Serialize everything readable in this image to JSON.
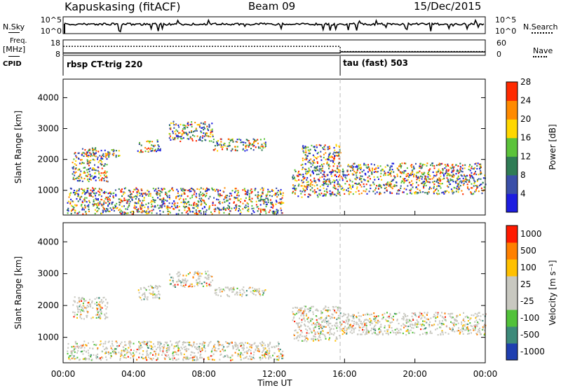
{
  "header": {
    "station": "Kapuskasing (fitACF)",
    "beam": "Beam 09",
    "date": "15/Dec/2015"
  },
  "left_labels": {
    "nsky": "N.Sky",
    "freq": "Freq.",
    "freq_unit": "[MHz]",
    "cpid": "CPID"
  },
  "right_labels": {
    "nsearch": "N.Search",
    "nave": "Nave"
  },
  "cpid_segments": [
    "rbsp CT-trig 220",
    "tau (fast) 503"
  ],
  "chart_data": [
    {
      "type": "line",
      "name": "noise",
      "left_ticks": [
        "10^5",
        "10^0"
      ],
      "right_ticks": [
        "10^5",
        "10^0"
      ],
      "series": [
        {
          "name": "N.Sky",
          "style": "solid"
        },
        {
          "name": "N.Search",
          "style": "dotted"
        }
      ]
    },
    {
      "type": "line",
      "name": "freq-nave",
      "left_ticks": [
        "18",
        "8"
      ],
      "right_ticks": [
        "60",
        "0"
      ],
      "freq_ylim": [
        8,
        18
      ],
      "nave_ylim": [
        0,
        60
      ],
      "series": [
        {
          "name": "Freq",
          "style": "solid",
          "x": [
            0,
            15.75,
            15.75,
            24
          ],
          "values": [
            9.5,
            9.5,
            10.2,
            10.2
          ]
        },
        {
          "name": "Nave",
          "style": "dotted",
          "x": [
            0,
            15.75,
            15.75,
            24
          ],
          "values": [
            35,
            35,
            15,
            15
          ]
        }
      ]
    },
    {
      "type": "heatmap",
      "name": "power",
      "ylabel": "Slant Range [km]",
      "ylim": [
        200,
        4600
      ],
      "yticks": [
        1000,
        2000,
        3000,
        4000
      ],
      "colorbar_label": "Power [dB]",
      "colorbar_ticks": [
        "4",
        "8",
        "12",
        "16",
        "20",
        "24",
        "28"
      ],
      "colors": [
        "#1d1de0",
        "#3a4fa8",
        "#2f7c55",
        "#5bc33a",
        "#ffd700",
        "#ff8a00",
        "#ff2a00"
      ],
      "bands": [
        {
          "x": [
            0.5,
            2.5
          ],
          "y": [
            1300,
            2250
          ]
        },
        {
          "x": [
            1.0,
            3.2
          ],
          "y": [
            2100,
            2400
          ]
        },
        {
          "x": [
            4.2,
            5.5
          ],
          "y": [
            2250,
            2650
          ]
        },
        {
          "x": [
            6.0,
            8.5
          ],
          "y": [
            2600,
            3250
          ]
        },
        {
          "x": [
            8.5,
            11.5
          ],
          "y": [
            2300,
            2700
          ]
        },
        {
          "x": [
            13.5,
            15.75
          ],
          "y": [
            1600,
            2500
          ]
        },
        {
          "x": [
            13.0,
            15.75
          ],
          "y": [
            800,
            1700
          ]
        },
        {
          "x": [
            15.75,
            24
          ],
          "y": [
            900,
            1900
          ]
        },
        {
          "x": [
            0.2,
            12.5
          ],
          "y": [
            250,
            1100
          ]
        }
      ]
    },
    {
      "type": "heatmap",
      "name": "velocity",
      "ylabel": "Slant Range [km]",
      "ylim": [
        200,
        4600
      ],
      "yticks": [
        1000,
        2000,
        3000,
        4000
      ],
      "colorbar_label": "Velocity [m s⁻¹]",
      "colorbar_ticks": [
        "1000",
        "500",
        "100",
        "25",
        "-25",
        "-100",
        "-500",
        "-1000"
      ],
      "colors": [
        "#1f3fb0",
        "#3d8a7a",
        "#52c23a",
        "#c8c8c0",
        "#c8c8c0",
        "#ffc000",
        "#ff8000",
        "#ff1a00"
      ],
      "bands": [
        {
          "x": [
            0.5,
            2.5
          ],
          "y": [
            1600,
            2300
          ]
        },
        {
          "x": [
            4.2,
            5.5
          ],
          "y": [
            2200,
            2650
          ]
        },
        {
          "x": [
            6.0,
            8.5
          ],
          "y": [
            2600,
            3100
          ]
        },
        {
          "x": [
            8.5,
            11.5
          ],
          "y": [
            2300,
            2600
          ]
        },
        {
          "x": [
            13.0,
            15.75
          ],
          "y": [
            900,
            2000
          ]
        },
        {
          "x": [
            15.75,
            24
          ],
          "y": [
            1100,
            1800
          ]
        },
        {
          "x": [
            0.2,
            12.5
          ],
          "y": [
            300,
            900
          ]
        }
      ]
    }
  ],
  "xaxis": {
    "label": "Time UT",
    "ticks": [
      "00:00",
      "04:00",
      "08:00",
      "12:00",
      "16:00",
      "20:00",
      "00:00"
    ],
    "tick_hours": [
      0,
      4,
      8,
      12,
      16,
      20,
      24
    ],
    "xlim": [
      0,
      24
    ],
    "cpid_change_hour": 15.75
  }
}
